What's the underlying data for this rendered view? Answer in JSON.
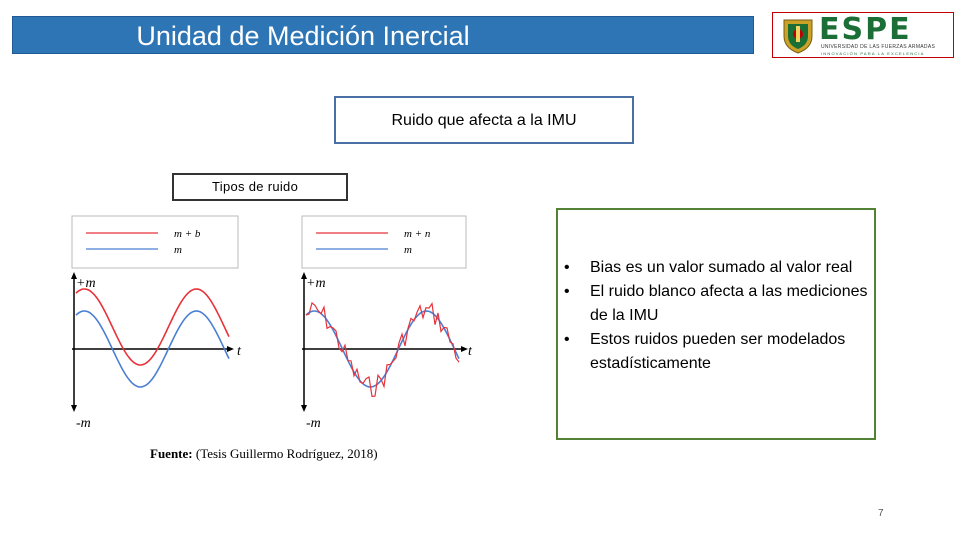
{
  "header": {
    "title": "Unidad de Medición Inercial",
    "logo_text": "ESPE",
    "logo_subtitle": "UNIVERSIDAD DE LAS FUERZAS ARMADAS",
    "logo_tagline": "INNOVACIÓN PARA LA EXCELENCIA"
  },
  "box_ruido": "Ruido que afecta a la IMU",
  "box_tipos": "Tipos de ruido",
  "figures": [
    {
      "legend": [
        "m + b",
        "m"
      ],
      "y_top_label": "+m",
      "y_bottom_label": "-m",
      "x_label": "t"
    },
    {
      "legend": [
        "m + n",
        "m"
      ],
      "y_top_label": "+m",
      "y_bottom_label": "-m",
      "x_label": "t"
    }
  ],
  "colors": {
    "measured": "#e8323a",
    "true": "#4a7fd4",
    "title_bg": "#2e75b6",
    "bullet_border": "#548235",
    "logo_green": "#1b6e36"
  },
  "source": {
    "label": "Fuente:",
    "text": "(Tesis Guillermo Rodríguez, 2018)"
  },
  "bullets": [
    "Bias es un valor sumado al valor real",
    "El ruido blanco afecta a las mediciones de la IMU",
    "Estos ruidos pueden ser modelados estadísticamente"
  ],
  "page_number": "7"
}
